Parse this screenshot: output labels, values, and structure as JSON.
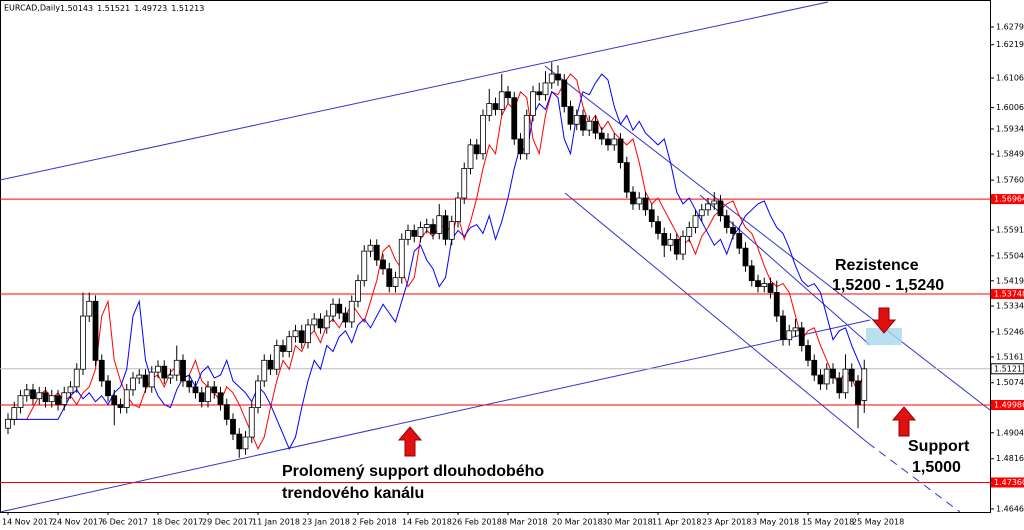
{
  "header": {
    "symbol": "EURCAD,Daily",
    "ohlc": [
      1.50143,
      1.51521,
      1.49723,
      1.51213
    ]
  },
  "annotations": {
    "resistance_title": "Rezistence",
    "resistance_range": "1,5200 - 1,5240",
    "support_title": "Support",
    "support_level": "1,5000",
    "broken_line1": "Prolomený support dlouhodobého",
    "broken_line2": "trendového kanálu"
  },
  "chart_data": {
    "type": "candlestick",
    "ylim": [
      1.4636,
      1.6371
    ],
    "yticks": [
      1.62795,
      1.62195,
      1.61065,
      1.60065,
      {
        "value": 1.5934,
        "label": "1.59340"
      },
      {
        "value": 1.5849,
        "label": "1.58490"
      },
      1.57605,
      {
        "value": 1.5591,
        "label": "1.55910"
      },
      {
        "value": 1.5504,
        "label": "1.55040"
      },
      1.54195,
      {
        "value": 1.5334,
        "label": "1.53340"
      },
      1.52465,
      1.51615,
      {
        "value": 1.5074,
        "label": "1.50740"
      },
      1.49045,
      1.48165,
      1.46465
    ],
    "hlines": [
      1.56964,
      1.53748,
      1.49986,
      {
        "value": 1.4736,
        "label": "1.47360"
      }
    ],
    "hline_color": "#ff0000",
    "last": 1.51213,
    "categories": [
      "14 Nov 2017",
      null,
      null,
      null,
      null,
      null,
      null,
      null,
      "24 Nov 2017",
      null,
      null,
      null,
      null,
      null,
      null,
      null,
      "6 Dec 2017",
      null,
      null,
      null,
      null,
      null,
      null,
      null,
      "18 Dec 2017",
      null,
      null,
      null,
      null,
      null,
      null,
      null,
      "29 Dec 2017",
      null,
      null,
      null,
      null,
      null,
      null,
      null,
      "11 Jan 2018",
      null,
      null,
      null,
      null,
      null,
      null,
      null,
      "23 Jan 2018",
      null,
      null,
      null,
      null,
      null,
      null,
      null,
      "2 Feb 2018",
      null,
      null,
      null,
      null,
      null,
      null,
      null,
      "14 Feb 2018",
      null,
      null,
      null,
      null,
      null,
      null,
      null,
      "26 Feb 2018",
      null,
      null,
      null,
      null,
      null,
      null,
      null,
      "8 Mar 2018",
      null,
      null,
      null,
      null,
      null,
      null,
      null,
      "20 Mar 2018",
      null,
      null,
      null,
      null,
      null,
      null,
      null,
      "30 Mar 2018",
      null,
      null,
      null,
      null,
      null,
      null,
      null,
      "11 Apr 2018",
      null,
      null,
      null,
      null,
      null,
      null,
      null,
      "23 Apr 2018",
      null,
      null,
      null,
      null,
      null,
      null,
      null,
      "3 May 2018",
      null,
      null,
      null,
      null,
      null,
      null,
      null,
      "15 May 2018",
      null,
      null,
      null,
      null,
      null,
      null,
      null,
      "25 May 2018",
      null
    ],
    "open": [
      1.492,
      1.495,
      1.499,
      1.503,
      1.505,
      1.502,
      1.504,
      1.501,
      1.503,
      1.5,
      1.504,
      1.506,
      1.512,
      1.53,
      1.535,
      1.515,
      1.508,
      1.503,
      1.5,
      1.499,
      1.505,
      1.509,
      1.51,
      1.506,
      1.511,
      1.513,
      1.509,
      1.51,
      1.515,
      1.508,
      1.506,
      1.504,
      1.501,
      1.506,
      1.504,
      1.5,
      1.495,
      1.49,
      1.485,
      1.489,
      1.499,
      1.508,
      1.515,
      1.512,
      1.52,
      1.518,
      1.523,
      1.525,
      1.521,
      1.527,
      1.529,
      1.526,
      1.53,
      1.534,
      1.531,
      1.528,
      1.535,
      1.542,
      1.552,
      1.554,
      1.549,
      1.546,
      1.54,
      1.543,
      1.556,
      1.559,
      1.557,
      1.56,
      1.561,
      1.558,
      1.564,
      1.556,
      1.562,
      1.57,
      1.58,
      1.588,
      1.585,
      1.598,
      1.602,
      1.6,
      1.606,
      1.604,
      1.59,
      1.585,
      1.598,
      1.606,
      1.605,
      1.609,
      1.612,
      1.61,
      1.601,
      1.595,
      1.598,
      1.593,
      1.596,
      1.592,
      1.59,
      1.588,
      1.59,
      1.582,
      1.572,
      1.568,
      1.57,
      1.566,
      1.562,
      1.558,
      1.554,
      1.556,
      1.551,
      1.557,
      1.56,
      1.564,
      1.566,
      1.568,
      1.569,
      1.564,
      1.56,
      1.558,
      1.553,
      1.547,
      1.542,
      1.54,
      1.541,
      1.538,
      1.53,
      1.522,
      1.525,
      1.526,
      1.52,
      1.515,
      1.51,
      1.507,
      1.512,
      1.509,
      1.504,
      1.512,
      1.508,
      1.5014
    ],
    "high": [
      1.497,
      1.501,
      1.505,
      1.507,
      1.507,
      1.506,
      1.506,
      1.505,
      1.505,
      1.506,
      1.508,
      1.514,
      1.538,
      1.538,
      1.537,
      1.517,
      1.51,
      1.505,
      1.502,
      1.507,
      1.511,
      1.512,
      1.512,
      1.513,
      1.515,
      1.515,
      1.512,
      1.52,
      1.517,
      1.51,
      1.508,
      1.506,
      1.508,
      1.508,
      1.506,
      1.502,
      1.497,
      1.492,
      1.491,
      1.501,
      1.51,
      1.517,
      1.517,
      1.522,
      1.522,
      1.525,
      1.527,
      1.527,
      1.529,
      1.531,
      1.531,
      1.532,
      1.536,
      1.536,
      1.533,
      1.537,
      1.544,
      1.554,
      1.556,
      1.556,
      1.551,
      1.548,
      1.545,
      1.558,
      1.561,
      1.561,
      1.562,
      1.563,
      1.563,
      1.568,
      1.566,
      1.564,
      1.572,
      1.582,
      1.59,
      1.59,
      1.6,
      1.607,
      1.604,
      1.612,
      1.608,
      1.606,
      1.592,
      1.6,
      1.608,
      1.609,
      1.613,
      1.616,
      1.615,
      1.612,
      1.603,
      1.6,
      1.6,
      1.598,
      1.598,
      1.594,
      1.592,
      1.592,
      1.592,
      1.584,
      1.574,
      1.572,
      1.572,
      1.568,
      1.564,
      1.56,
      1.558,
      1.558,
      1.559,
      1.562,
      1.566,
      1.568,
      1.57,
      1.572,
      1.571,
      1.566,
      1.562,
      1.56,
      1.555,
      1.549,
      1.544,
      1.543,
      1.543,
      1.542,
      1.532,
      1.527,
      1.529,
      1.528,
      1.522,
      1.517,
      1.512,
      1.514,
      1.514,
      1.511,
      1.517,
      1.514,
      1.51,
      1.5152
    ],
    "low": [
      1.49,
      1.493,
      1.497,
      1.501,
      1.5,
      1.5,
      1.499,
      1.499,
      1.498,
      1.498,
      1.502,
      1.504,
      1.51,
      1.528,
      1.513,
      1.506,
      1.501,
      1.493,
      1.497,
      1.497,
      1.503,
      1.507,
      1.504,
      1.504,
      1.509,
      1.507,
      1.507,
      1.508,
      1.506,
      1.504,
      1.502,
      1.499,
      1.499,
      1.502,
      1.498,
      1.493,
      1.488,
      1.482,
      1.483,
      1.487,
      1.497,
      1.506,
      1.51,
      1.51,
      1.516,
      1.516,
      1.521,
      1.519,
      1.519,
      1.525,
      1.524,
      1.524,
      1.528,
      1.529,
      1.526,
      1.526,
      1.533,
      1.54,
      1.55,
      1.547,
      1.544,
      1.538,
      1.538,
      1.541,
      1.554,
      1.555,
      1.555,
      1.558,
      1.556,
      1.556,
      1.554,
      1.554,
      1.56,
      1.568,
      1.578,
      1.583,
      1.583,
      1.596,
      1.598,
      1.598,
      1.602,
      1.588,
      1.583,
      1.583,
      1.596,
      1.603,
      1.603,
      1.607,
      1.608,
      1.599,
      1.593,
      1.593,
      1.591,
      1.591,
      1.59,
      1.588,
      1.586,
      1.586,
      1.58,
      1.57,
      1.566,
      1.566,
      1.564,
      1.56,
      1.556,
      1.55,
      1.552,
      1.549,
      1.549,
      1.555,
      1.558,
      1.562,
      1.564,
      1.566,
      1.562,
      1.558,
      1.556,
      1.551,
      1.545,
      1.54,
      1.538,
      1.538,
      1.536,
      1.528,
      1.52,
      1.52,
      1.523,
      1.518,
      1.513,
      1.508,
      1.505,
      1.505,
      1.507,
      1.502,
      1.502,
      1.506,
      1.492,
      1.4972
    ],
    "close": [
      1.495,
      1.499,
      1.503,
      1.505,
      1.502,
      1.504,
      1.501,
      1.503,
      1.5,
      1.504,
      1.506,
      1.512,
      1.53,
      1.535,
      1.515,
      1.508,
      1.503,
      1.5,
      1.499,
      1.505,
      1.509,
      1.51,
      1.506,
      1.511,
      1.513,
      1.509,
      1.51,
      1.515,
      1.508,
      1.506,
      1.504,
      1.501,
      1.506,
      1.504,
      1.5,
      1.495,
      1.49,
      1.485,
      1.489,
      1.499,
      1.508,
      1.515,
      1.512,
      1.52,
      1.518,
      1.523,
      1.525,
      1.521,
      1.527,
      1.529,
      1.526,
      1.53,
      1.534,
      1.531,
      1.528,
      1.535,
      1.542,
      1.552,
      1.554,
      1.549,
      1.546,
      1.54,
      1.543,
      1.556,
      1.559,
      1.557,
      1.56,
      1.561,
      1.558,
      1.564,
      1.556,
      1.562,
      1.57,
      1.58,
      1.588,
      1.585,
      1.598,
      1.602,
      1.6,
      1.606,
      1.604,
      1.59,
      1.585,
      1.598,
      1.606,
      1.605,
      1.609,
      1.612,
      1.61,
      1.601,
      1.595,
      1.598,
      1.593,
      1.596,
      1.592,
      1.59,
      1.588,
      1.59,
      1.582,
      1.572,
      1.568,
      1.57,
      1.566,
      1.562,
      1.558,
      1.554,
      1.556,
      1.551,
      1.557,
      1.56,
      1.564,
      1.566,
      1.568,
      1.569,
      1.564,
      1.56,
      1.558,
      1.553,
      1.547,
      1.542,
      1.54,
      1.541,
      1.538,
      1.53,
      1.522,
      1.525,
      1.526,
      1.52,
      1.515,
      1.51,
      1.507,
      1.512,
      1.509,
      1.504,
      1.512,
      1.508,
      1.5,
      1.5121
    ],
    "series": [
      {
        "color": "#ff0000",
        "values": [
          1.495,
          1.495,
          1.495,
          1.495,
          1.499,
          1.503,
          1.505,
          1.502,
          1.504,
          1.501,
          1.503,
          1.5,
          1.504,
          1.506,
          1.512,
          1.53,
          1.535,
          1.515,
          1.508,
          1.503,
          1.5,
          1.499,
          1.505,
          1.509,
          1.51,
          1.506,
          1.511,
          1.513,
          1.509,
          1.51,
          1.515,
          1.508,
          1.506,
          1.504,
          1.501,
          1.506,
          1.504,
          1.5,
          1.495,
          1.49,
          1.485,
          1.489,
          1.499,
          1.508,
          1.515,
          1.512,
          1.52,
          1.518,
          1.523,
          1.525,
          1.521,
          1.527,
          1.529,
          1.526,
          1.53,
          1.534,
          1.531,
          1.528,
          1.535,
          1.542,
          1.552,
          1.554,
          1.549,
          1.546,
          1.54,
          1.543,
          1.556,
          1.559,
          1.557,
          1.56,
          1.561,
          1.558,
          1.564,
          1.556,
          1.562,
          1.57,
          1.58,
          1.588,
          1.585,
          1.598,
          1.602,
          1.6,
          1.606,
          1.604,
          1.59,
          1.585,
          1.598,
          1.606,
          1.605,
          1.609,
          1.612,
          1.61,
          1.601,
          1.595,
          1.598,
          1.593,
          1.596,
          1.592,
          1.59,
          1.588,
          1.59,
          1.582,
          1.572,
          1.568,
          1.57,
          1.566,
          1.562,
          1.558,
          1.554,
          1.556,
          1.551,
          1.557,
          1.56,
          1.564,
          1.566,
          1.568,
          1.569,
          1.564,
          1.56,
          1.558,
          1.553,
          1.547,
          1.542,
          1.54,
          1.541,
          1.538,
          1.53,
          1.522,
          1.525,
          1.526,
          1.52,
          1.515,
          1.51,
          1.507,
          1.512,
          1.509,
          1.504,
          1.512
        ]
      },
      {
        "color": "#0000ff",
        "values": [
          1.495,
          1.495,
          1.495,
          1.495,
          1.495,
          1.495,
          1.495,
          1.495,
          1.495,
          1.499,
          1.503,
          1.505,
          1.502,
          1.504,
          1.501,
          1.503,
          1.5,
          1.504,
          1.506,
          1.512,
          1.53,
          1.535,
          1.515,
          1.508,
          1.503,
          1.5,
          1.499,
          1.505,
          1.509,
          1.51,
          1.506,
          1.511,
          1.513,
          1.509,
          1.51,
          1.515,
          1.508,
          1.506,
          1.504,
          1.501,
          1.506,
          1.504,
          1.5,
          1.495,
          1.49,
          1.485,
          1.489,
          1.499,
          1.508,
          1.515,
          1.512,
          1.52,
          1.518,
          1.523,
          1.525,
          1.521,
          1.527,
          1.529,
          1.526,
          1.53,
          1.534,
          1.531,
          1.528,
          1.535,
          1.542,
          1.552,
          1.554,
          1.549,
          1.546,
          1.54,
          1.543,
          1.556,
          1.559,
          1.557,
          1.56,
          1.561,
          1.558,
          1.564,
          1.556,
          1.562,
          1.57,
          1.58,
          1.588,
          1.585,
          1.598,
          1.602,
          1.6,
          1.606,
          1.604,
          1.59,
          1.585,
          1.598,
          1.606,
          1.605,
          1.609,
          1.612,
          1.61,
          1.601,
          1.595,
          1.598,
          1.593,
          1.596,
          1.592,
          1.59,
          1.588,
          1.59,
          1.582,
          1.572,
          1.568,
          1.57,
          1.566,
          1.562,
          1.558,
          1.554,
          1.556,
          1.551,
          1.557,
          1.56,
          1.564,
          1.566,
          1.568,
          1.569,
          1.564,
          1.56,
          1.558,
          1.553,
          1.547,
          1.542,
          1.54,
          1.541,
          1.538,
          1.53,
          1.522,
          1.525,
          1.526,
          1.52,
          1.515,
          1.51
        ]
      }
    ]
  }
}
